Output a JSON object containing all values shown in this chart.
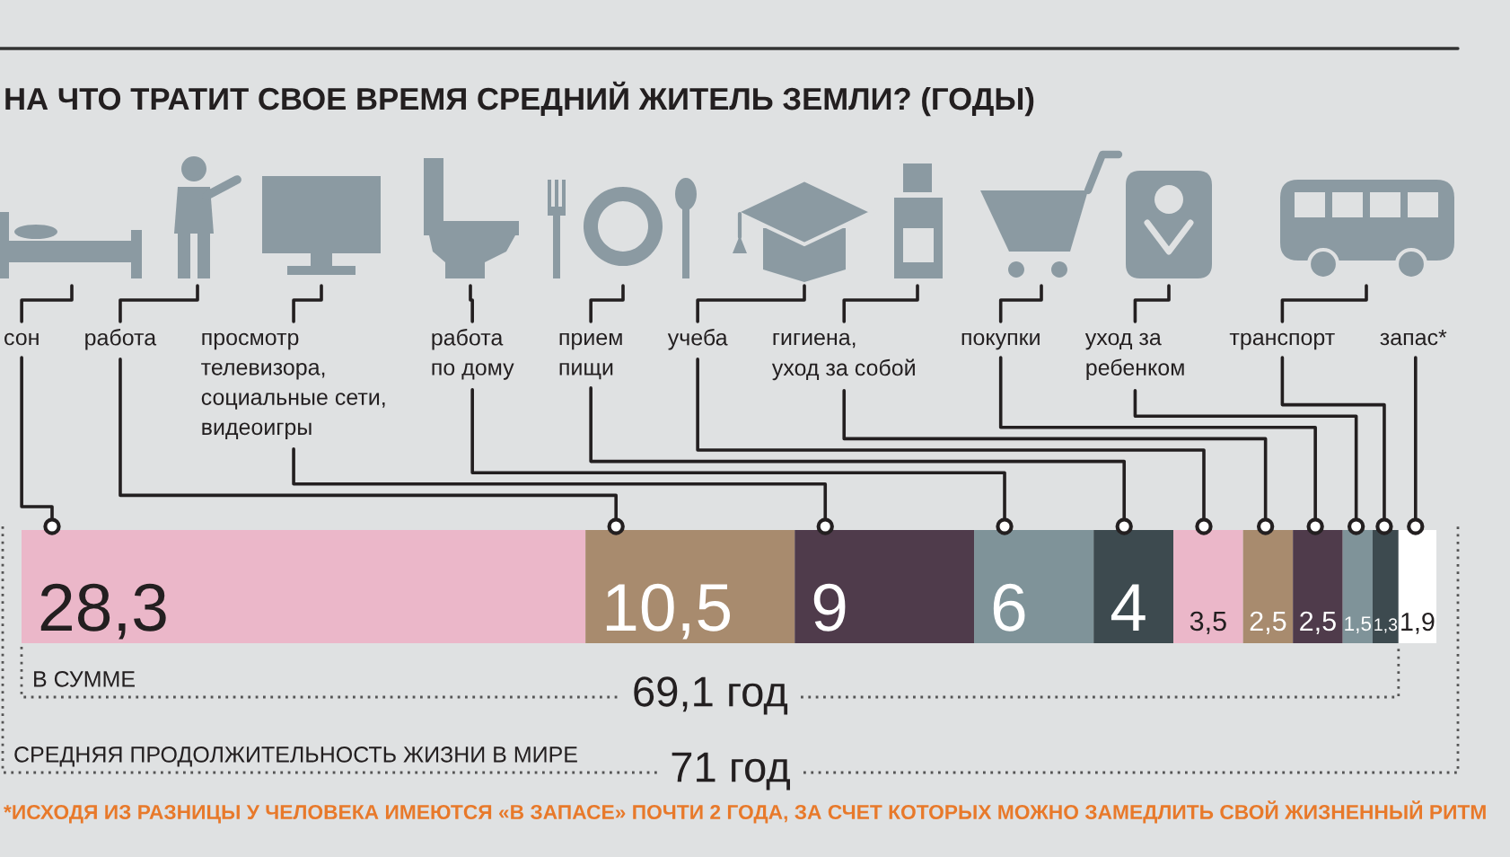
{
  "chart_data": {
    "type": "bar",
    "orientation": "horizontal",
    "stacked": true,
    "title": "НА ЧТО ТРАТИТ СВОЕ ВРЕМЯ СРЕДНИЙ ЖИТЕЛЬ ЗЕМЛИ? (ГОДЫ)",
    "categories": [
      null
    ],
    "xlim": [
      0,
      71
    ],
    "tick_labels": false,
    "series": [
      {
        "name": "сон",
        "color": "#ebb7c9",
        "values": [
          28.3
        ],
        "value_labels": [
          "28,3"
        ]
      },
      {
        "name": "работа",
        "color": "#a88b6e",
        "values": [
          10.5
        ],
        "value_labels": [
          "10,5"
        ]
      },
      {
        "name": "просмотр\nтелевизора,\nсоциальные сети,\nвидеоигры",
        "color": "#4f3b4b",
        "values": [
          9
        ],
        "value_labels": [
          "9"
        ]
      },
      {
        "name": "работа\nпо дому",
        "color": "#7f9399",
        "values": [
          6
        ],
        "value_labels": [
          "6"
        ]
      },
      {
        "name": "прием\nпищи",
        "color": "#3d4a4f",
        "values": [
          4
        ],
        "value_labels": [
          "4"
        ]
      },
      {
        "name": "учеба",
        "color": "#ebb7c9",
        "values": [
          3.5
        ],
        "value_labels": [
          "3,5"
        ]
      },
      {
        "name": "гигиена,\nуход за собой",
        "color": "#a88b6e",
        "values": [
          2.5
        ],
        "value_labels": [
          "2,5"
        ]
      },
      {
        "name": "покупки",
        "color": "#4f3b4b",
        "values": [
          2.5
        ],
        "value_labels": [
          "2,5"
        ]
      },
      {
        "name": "уход за\nребенком",
        "color": "#7f9399",
        "values": [
          1.5
        ],
        "value_labels": [
          "1,5"
        ]
      },
      {
        "name": "транспорт",
        "color": "#3d4a4f",
        "values": [
          1.3
        ],
        "value_labels": [
          "1,3"
        ]
      },
      {
        "name": "запас*",
        "color": "#ffffff",
        "values": [
          1.9
        ],
        "value_labels": [
          "1,9"
        ]
      }
    ],
    "annotations": [
      "В СУММЕ",
      "69,1 год",
      "СРЕДНЯЯ ПРОДОЛЖИТЕЛЬНОСТЬ ЖИЗНИ В МИРЕ",
      "71 год",
      "*ИСХОДЯ ИЗ РАЗНИЦЫ У ЧЕЛОВЕКА ИМЕЮТСЯ «В ЗАПАСЕ» ПОЧТИ 2 ГОДА, ЗА СЧЕТ КОТОРЫХ МОЖНО ЗАМЕДЛИТЬ СВОЙ ЖИЗНЕННЫЙ РИТМ"
    ]
  }
}
